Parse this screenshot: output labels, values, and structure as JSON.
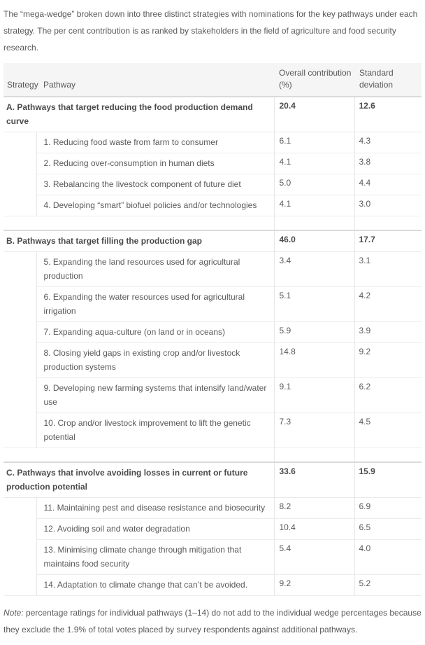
{
  "caption": "The “mega-wedge” broken down into three distinct strategies with nominations for the key pathways under each strategy. The per cent contribution is as ranked by stakeholders in the field of agriculture and food security research.",
  "table": {
    "columns": {
      "strategy": "Strategy",
      "pathway": "Pathway",
      "contribution": "Overall contribution (%)",
      "std_dev": "Standard deviation"
    },
    "sections": [
      {
        "label": "A. Pathways that target reducing the food production demand curve",
        "contribution": "20.4",
        "std_dev": "12.6",
        "pathways": [
          {
            "label": "1. Reducing food waste from farm to consumer",
            "contribution": "6.1",
            "std_dev": "4.3"
          },
          {
            "label": "2. Reducing over-consumption in human diets",
            "contribution": "4.1",
            "std_dev": "3.8"
          },
          {
            "label": "3. Rebalancing the livestock component of future diet",
            "contribution": "5.0",
            "std_dev": "4.4"
          },
          {
            "label": "4. Developing “smart” biofuel policies and/or technologies",
            "contribution": "4.1",
            "std_dev": "3.0"
          }
        ]
      },
      {
        "label": "B. Pathways that target filling the production gap",
        "contribution": "46.0",
        "std_dev": "17.7",
        "pathways": [
          {
            "label": "5. Expanding the land resources used for agricultural production",
            "contribution": "3.4",
            "std_dev": "3.1"
          },
          {
            "label": "6. Expanding the water resources used for agricultural irrigation",
            "contribution": "5.1",
            "std_dev": "4.2"
          },
          {
            "label": "7. Expanding aqua-culture (on land or in oceans)",
            "contribution": "5.9",
            "std_dev": "3.9"
          },
          {
            "label": "8. Closing yield gaps in existing crop and/or livestock production systems",
            "contribution": "14.8",
            "std_dev": "9.2"
          },
          {
            "label": "9. Developing new farming systems that intensify land/water use",
            "contribution": "9.1",
            "std_dev": "6.2"
          },
          {
            "label": "10. Crop and/or livestock improvement to lift the genetic potential",
            "contribution": "7.3",
            "std_dev": "4.5"
          }
        ]
      },
      {
        "label": "C. Pathways that involve avoiding losses in current or future production potential",
        "contribution": "33.6",
        "std_dev": "15.9",
        "pathways": [
          {
            "label": "11. Maintaining pest and disease resistance and biosecurity",
            "contribution": "8.2",
            "std_dev": "6.9"
          },
          {
            "label": "12. Avoiding soil and water degradation",
            "contribution": "10.4",
            "std_dev": "6.5"
          },
          {
            "label": "13. Minimising climate change through mitigation that maintains food security",
            "contribution": "5.4",
            "std_dev": "4.0"
          },
          {
            "label": "14. Adaptation to climate change that can’t be avoided.",
            "contribution": "9.2",
            "std_dev": "5.2"
          }
        ]
      }
    ]
  },
  "note": {
    "prefix": "Note:",
    "text": "percentage ratings for individual pathways (1–14) do not add to the individual wedge percentages because they exclude the 1.9% of total votes placed by survey respondents against additional pathways."
  },
  "colors": {
    "header_background": "#f5f5f5",
    "body_text": "#595959",
    "bold_text": "#4a4a4a",
    "light_border": "#ececec",
    "section_border": "#dadada"
  }
}
